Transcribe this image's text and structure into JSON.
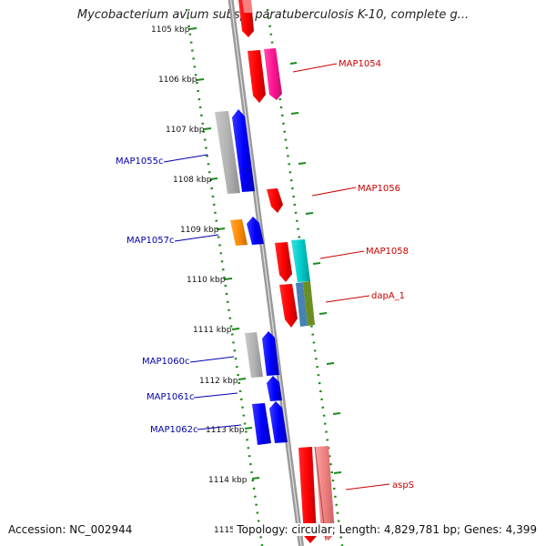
{
  "header": {
    "title": "Mycobacterium avium subsp. paratuberculosis K-10, complete g..."
  },
  "footer": {
    "accession": "Accession: NC_002944",
    "summary": "Topology: circular; Length: 4,829,781 bp; Genes: 4,399"
  },
  "ruler": {
    "ticks": [
      "1105 kbp",
      "1106 kbp",
      "1107 kbp",
      "1108 kbp",
      "1109 kbp",
      "1110 kbp",
      "1111 kbp",
      "1112 kbp",
      "1113 kbp",
      "1114 kbp",
      "1115"
    ]
  },
  "genes": {
    "forward": [
      {
        "label": "MAP1054",
        "color": "#cc0000"
      },
      {
        "label": "MAP1056",
        "color": "#cc0000"
      },
      {
        "label": "MAP1058",
        "color": "#cc0000"
      },
      {
        "label": "dapA_1",
        "color": "#cc0000"
      },
      {
        "label": "aspS",
        "color": "#cc0000"
      }
    ],
    "reverse": [
      {
        "label": "MAP1055c",
        "color": "#0000aa"
      },
      {
        "label": "MAP1057c",
        "color": "#0000aa"
      },
      {
        "label": "MAP1060c",
        "color": "#0000aa"
      },
      {
        "label": "MAP1061c",
        "color": "#0000aa"
      },
      {
        "label": "MAP1062c",
        "color": "#0000aa"
      }
    ]
  },
  "colors": {
    "backbone": "#8a8a8a",
    "tick_dots": "#1a8a1a",
    "forward_feature": "#ff0000",
    "reverse_feature": "#0000ff",
    "gray_feature": "#b3b3b3",
    "pink_feature": "#ff1493",
    "light_red_feature": "#f08080",
    "cyan_feature": "#00cccc",
    "orange_feature": "#ff8c00",
    "olive_feature": "#6b8e23",
    "steel_feature": "#4682b4"
  }
}
